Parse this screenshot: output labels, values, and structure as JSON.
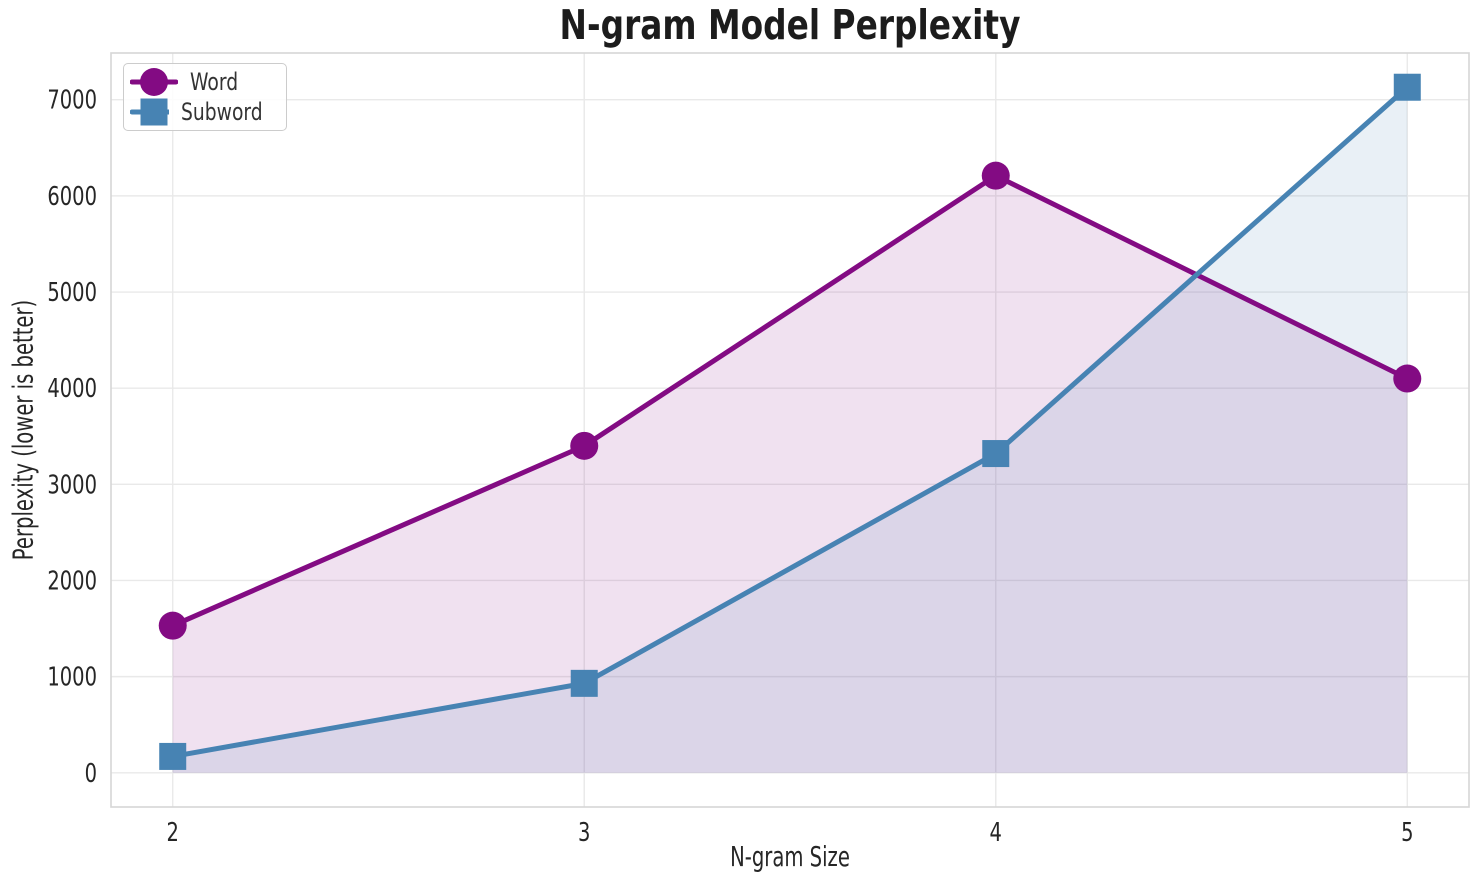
{
  "chart_data": {
    "type": "line",
    "title": "N-gram Model Perplexity",
    "xlabel": "N-gram Size",
    "ylabel": "Perplexity (lower is better)",
    "x": [
      2,
      3,
      4,
      5
    ],
    "xticks": [
      2,
      3,
      4,
      5
    ],
    "xtick_labels": [
      "2",
      "3",
      "4",
      "5"
    ],
    "yticks": [
      0,
      1000,
      2000,
      3000,
      4000,
      5000,
      6000,
      7000
    ],
    "ytick_labels": [
      "0",
      "1000",
      "2000",
      "3000",
      "4000",
      "5000",
      "6000",
      "7000"
    ],
    "xlim": [
      1.85,
      5.15
    ],
    "ylim": [
      -356,
      7486
    ],
    "grid": true,
    "legend": {
      "position": "upper-left",
      "entries": [
        "Word",
        "Subword"
      ]
    },
    "series": [
      {
        "name": "Word",
        "marker": "circle",
        "color": "#830b83",
        "values": [
          1530,
          3400,
          6210,
          4100
        ],
        "fill_to_zero": true,
        "fill_alpha": 0.12
      },
      {
        "name": "Subword",
        "marker": "square",
        "color": "#4783b3",
        "values": [
          170,
          930,
          3320,
          7130
        ],
        "fill_to_zero": true,
        "fill_alpha": 0.12
      }
    ],
    "style": {
      "grid_color": "#e9e9e9",
      "spine_color": "#d6d6d6",
      "tick_color": "#262626",
      "title_color": "#1c1c1c",
      "background": "#ffffff"
    }
  }
}
